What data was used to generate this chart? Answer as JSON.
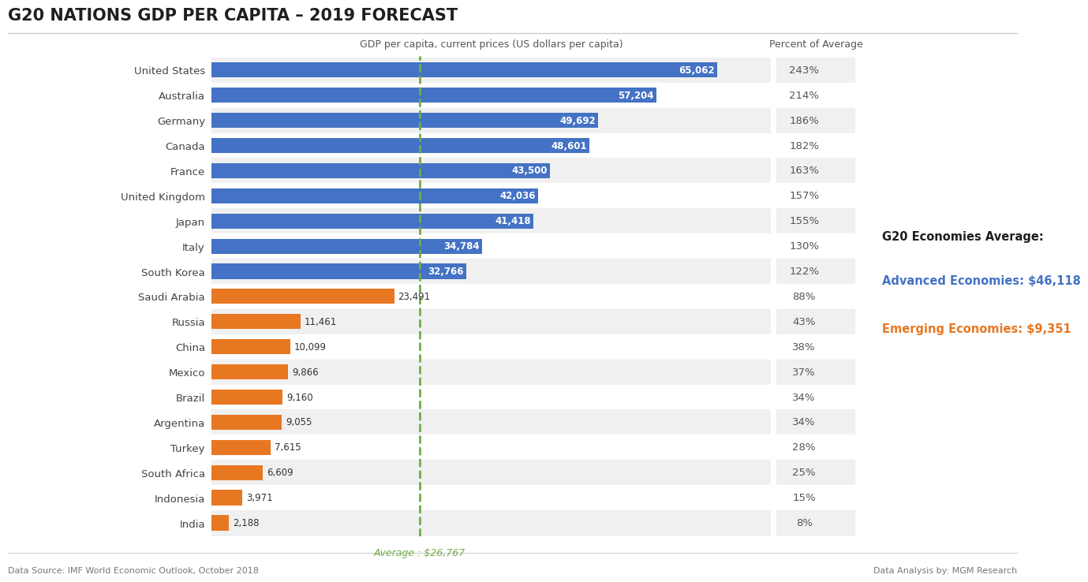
{
  "title": "G20 NATIONS GDP PER CAPITA – 2019 FORECAST",
  "xlabel": "GDP per capita, current prices (US dollars per capita)",
  "percent_label": "Percent of Average",
  "footer_left": "Data Source: IMF World Economic Outlook, October 2018",
  "footer_right": "Data Analysis by: MGM Research",
  "average_label": "Average : $26,767",
  "average_value": 26767,
  "legend_title": "G20 Economies Average:",
  "legend_advanced": "Advanced Economies: $46,118",
  "legend_emerging": "Emerging Economies: $9,351",
  "countries": [
    "United States",
    "Australia",
    "Germany",
    "Canada",
    "France",
    "United Kingdom",
    "Japan",
    "Italy",
    "South Korea",
    "Saudi Arabia",
    "Russia",
    "China",
    "Mexico",
    "Brazil",
    "Argentina",
    "Turkey",
    "South Africa",
    "Indonesia",
    "India"
  ],
  "values": [
    65062,
    57204,
    49692,
    48601,
    43500,
    42036,
    41418,
    34784,
    32766,
    23491,
    11461,
    10099,
    9866,
    9160,
    9055,
    7615,
    6609,
    3971,
    2188
  ],
  "percents": [
    "243%",
    "214%",
    "186%",
    "182%",
    "163%",
    "157%",
    "155%",
    "130%",
    "122%",
    "88%",
    "43%",
    "38%",
    "37%",
    "34%",
    "34%",
    "28%",
    "25%",
    "15%",
    "8%"
  ],
  "colors": [
    "#4472C4",
    "#4472C4",
    "#4472C4",
    "#4472C4",
    "#4472C4",
    "#4472C4",
    "#4472C4",
    "#4472C4",
    "#4472C4",
    "#E87722",
    "#E87722",
    "#E87722",
    "#E87722",
    "#E87722",
    "#E87722",
    "#E87722",
    "#E87722",
    "#E87722",
    "#E87722"
  ],
  "advanced_color": "#4472C4",
  "emerging_color": "#E87722",
  "avg_line_color": "#70AD47",
  "background_color": "#FFFFFF",
  "alt_row_color": "#F0F0F0",
  "title_color": "#1F1F1F",
  "percent_color": "#555555",
  "xlim_max": 72000,
  "bar_height": 0.6,
  "label_inside_threshold": 15000
}
